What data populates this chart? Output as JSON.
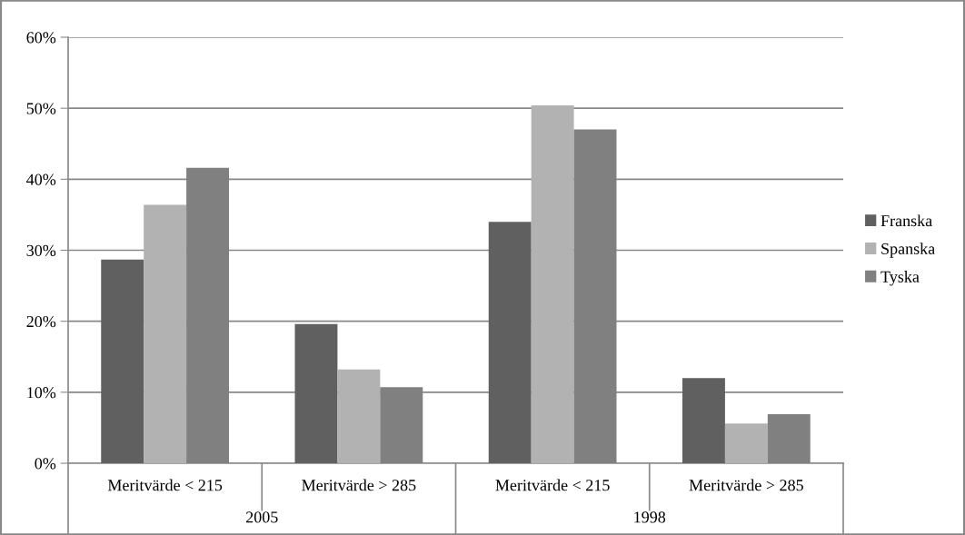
{
  "chart_data": {
    "type": "bar",
    "categories": [
      "Meritvärde < 215",
      "Meritvärde > 285",
      "Meritvärde < 215",
      "Meritvärde > 285"
    ],
    "series": [
      {
        "name": "Franska",
        "color": "#606060",
        "values": [
          28.7,
          19.6,
          34.0,
          12.0
        ]
      },
      {
        "name": "Spanska",
        "color": "#b2b2b2",
        "values": [
          36.4,
          13.2,
          50.4,
          5.6
        ]
      },
      {
        "name": "Tyska",
        "color": "#808080",
        "values": [
          41.6,
          10.7,
          47.0,
          6.9
        ]
      }
    ],
    "annotations": [
      "2005",
      "1998"
    ],
    "ylim": [
      0,
      60
    ],
    "yticks": [
      {
        "value": 0,
        "label": "0%"
      },
      {
        "value": 10,
        "label": "10%"
      },
      {
        "value": 20,
        "label": "20%"
      },
      {
        "value": 30,
        "label": "30%"
      },
      {
        "value": 40,
        "label": "40%"
      },
      {
        "value": 50,
        "label": "50%"
      },
      {
        "value": 60,
        "label": "60%"
      }
    ],
    "grid": "y",
    "legend": "right"
  }
}
